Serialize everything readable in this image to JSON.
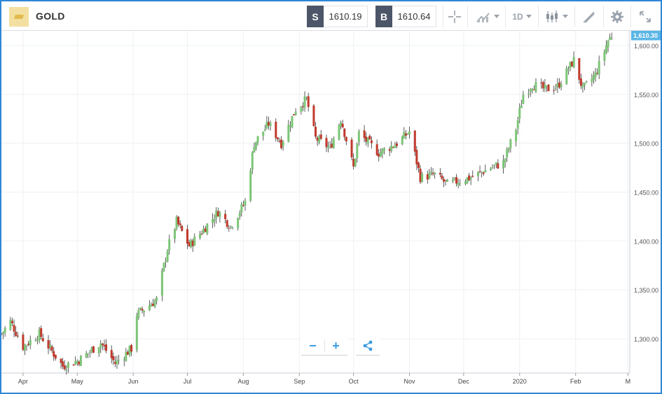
{
  "header": {
    "symbol": "GOLD",
    "sell_label": "S",
    "sell_price": "1610.19",
    "buy_label": "B",
    "buy_price": "1610.64",
    "timeframe": "1D"
  },
  "colors": {
    "sell": "#4c5668",
    "buy": "#4c5668",
    "up": "#7cc576",
    "down": "#c0392b",
    "wick": "#333333",
    "last_price": "#5bb6e6",
    "accent": "#2f86d6"
  },
  "icons": [
    "gold-bar-icon",
    "crosshair-icon",
    "chart-type-icon",
    "candlestick-icon",
    "draw-icon",
    "gear-icon",
    "fullscreen-icon",
    "zoom-out-icon",
    "zoom-in-icon",
    "share-icon"
  ],
  "chart_data": {
    "type": "candlestick",
    "x_range": [
      "2019-03-20",
      "2020-03-02"
    ],
    "ylim": [
      1265,
      1615
    ],
    "y_ticks": [
      1300,
      1350,
      1400,
      1450,
      1500,
      1550,
      1600
    ],
    "y_tick_labels": [
      "1,300.00",
      "1,350.00",
      "1,400.00",
      "1,450.00",
      "1,500.00",
      "1,550.00",
      "1,600.00"
    ],
    "x_tick_labels": [
      {
        "date": "2019-04-01",
        "label": "Apr"
      },
      {
        "date": "2019-05-01",
        "label": "May"
      },
      {
        "date": "2019-06-01",
        "label": "Jun"
      },
      {
        "date": "2019-07-01",
        "label": "Jul"
      },
      {
        "date": "2019-08-01",
        "label": "Aug"
      },
      {
        "date": "2019-09-01",
        "label": "Sep"
      },
      {
        "date": "2019-10-01",
        "label": "Oct"
      },
      {
        "date": "2019-11-01",
        "label": "Nov"
      },
      {
        "date": "2019-12-01",
        "label": "Dec"
      },
      {
        "date": "2020-01-01",
        "label": "2020"
      },
      {
        "date": "2020-02-01",
        "label": "Feb"
      },
      {
        "date": "2020-03-01",
        "label": "M"
      }
    ],
    "last_price": 1610.3,
    "last_price_label": "1,610.30",
    "grid": true,
    "close_anchors": [
      [
        "2019-03-20",
        1305
      ],
      [
        "2019-03-25",
        1318
      ],
      [
        "2019-04-01",
        1292
      ],
      [
        "2019-04-10",
        1305
      ],
      [
        "2019-04-23",
        1272
      ],
      [
        "2019-05-02",
        1278
      ],
      [
        "2019-05-14",
        1296
      ],
      [
        "2019-05-22",
        1275
      ],
      [
        "2019-05-31",
        1290
      ],
      [
        "2019-06-03",
        1325
      ],
      [
        "2019-06-14",
        1340
      ],
      [
        "2019-06-20",
        1392
      ],
      [
        "2019-06-25",
        1420
      ],
      [
        "2019-07-02",
        1395
      ],
      [
        "2019-07-10",
        1412
      ],
      [
        "2019-07-18",
        1430
      ],
      [
        "2019-07-25",
        1415
      ],
      [
        "2019-08-02",
        1440
      ],
      [
        "2019-08-07",
        1500
      ],
      [
        "2019-08-15",
        1520
      ],
      [
        "2019-08-22",
        1500
      ],
      [
        "2019-08-30",
        1535
      ],
      [
        "2019-09-05",
        1545
      ],
      [
        "2019-09-10",
        1505
      ],
      [
        "2019-09-18",
        1495
      ],
      [
        "2019-09-24",
        1525
      ],
      [
        "2019-10-01",
        1475
      ],
      [
        "2019-10-04",
        1510
      ],
      [
        "2019-10-15",
        1490
      ],
      [
        "2019-10-25",
        1500
      ],
      [
        "2019-11-01",
        1512
      ],
      [
        "2019-11-07",
        1465
      ],
      [
        "2019-11-15",
        1468
      ],
      [
        "2019-11-22",
        1458
      ],
      [
        "2019-11-29",
        1462
      ],
      [
        "2019-12-05",
        1465
      ],
      [
        "2019-12-16",
        1475
      ],
      [
        "2019-12-23",
        1480
      ],
      [
        "2019-12-30",
        1515
      ],
      [
        "2020-01-03",
        1550
      ],
      [
        "2020-01-08",
        1560
      ],
      [
        "2020-01-15",
        1555
      ],
      [
        "2020-01-22",
        1558
      ],
      [
        "2020-01-31",
        1585
      ],
      [
        "2020-02-05",
        1555
      ],
      [
        "2020-02-12",
        1570
      ],
      [
        "2020-02-19",
        1605
      ],
      [
        "2020-02-21",
        1610.3
      ]
    ]
  }
}
